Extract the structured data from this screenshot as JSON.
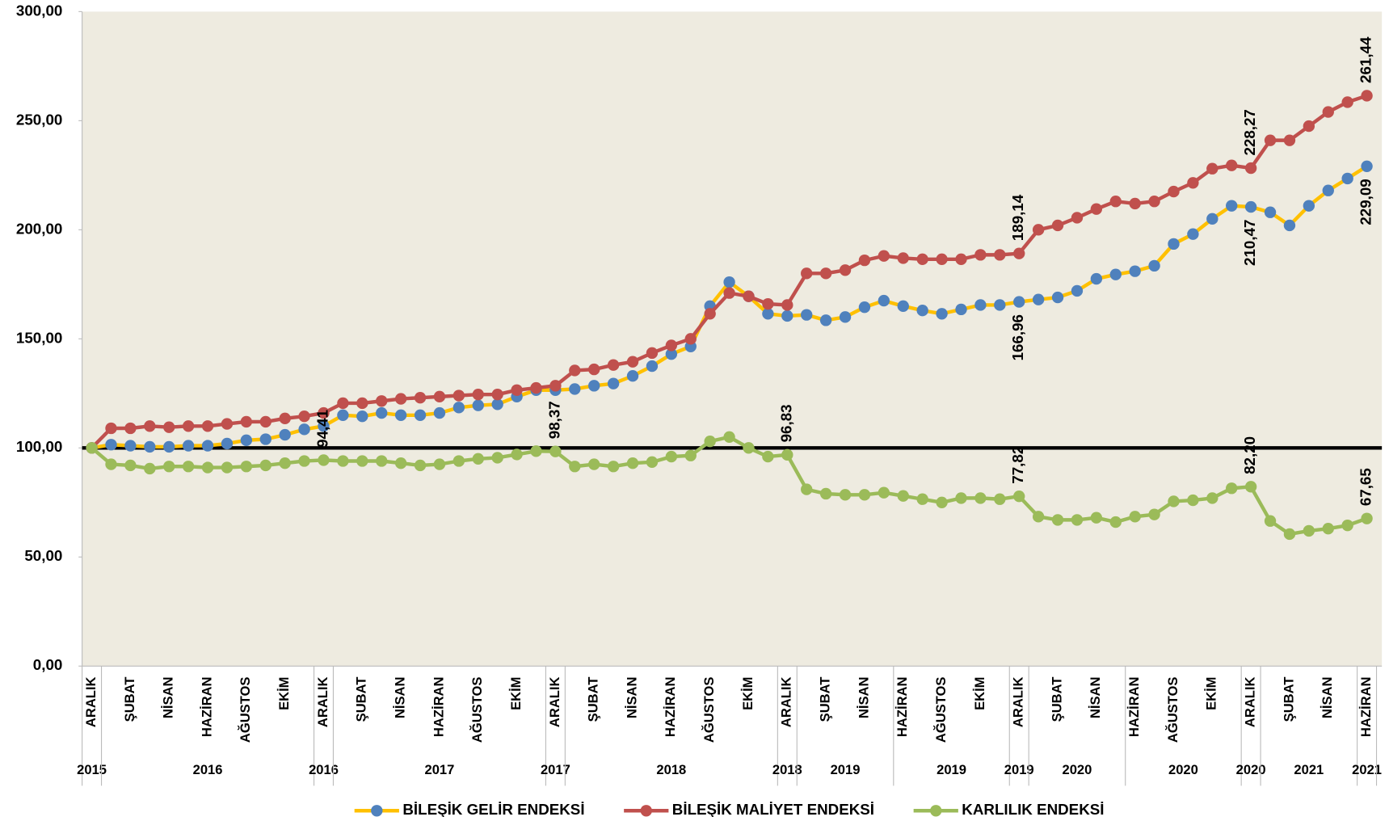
{
  "chart_data": {
    "type": "line",
    "categories": [
      "ARALIK",
      null,
      "ŞUBAT",
      null,
      "NİSAN",
      null,
      "HAZİRAN",
      null,
      "AĞUSTOS",
      null,
      "EKİM",
      null,
      "ARALIK",
      null,
      "ŞUBAT",
      null,
      "NİSAN",
      null,
      "HAZİRAN",
      null,
      "AĞUSTOS",
      null,
      "EKİM",
      null,
      "ARALIK",
      null,
      "ŞUBAT",
      null,
      "NİSAN",
      null,
      "HAZİRAN",
      null,
      "AĞUSTOS",
      null,
      "EKİM",
      null,
      "ARALIK",
      null,
      "ŞUBAT",
      null,
      "NİSAN",
      null,
      "HAZİRAN",
      null,
      "AĞUSTOS",
      null,
      "EKİM",
      null,
      "ARALIK",
      null,
      "ŞUBAT",
      null,
      "NİSAN",
      null,
      "HAZİRAN",
      null,
      "AĞUSTOS",
      null,
      "EKİM",
      null,
      "ARALIK",
      null,
      "ŞUBAT",
      null,
      "NİSAN",
      null,
      "HAZİRAN"
    ],
    "category_groups": [
      {
        "label": "2015",
        "span": 1
      },
      {
        "label": "2016",
        "span": 11
      },
      {
        "label": "2016",
        "span": 1
      },
      {
        "label": "2017",
        "span": 11
      },
      {
        "label": "2017",
        "span": 1
      },
      {
        "label": "2018",
        "span": 11
      },
      {
        "label": "2018",
        "span": 1
      },
      {
        "label": "2019",
        "span": 5
      },
      {
        "label": "2019",
        "span": 6
      },
      {
        "label": "2019",
        "span": 1
      },
      {
        "label": "2020",
        "span": 5
      },
      {
        "label": "2020",
        "span": 6
      },
      {
        "label": "2020",
        "span": 1
      },
      {
        "label": "2021",
        "span": 5
      },
      {
        "label": "2021",
        "span": 1
      }
    ],
    "series": [
      {
        "name": "BİLEŞİK GELİR ENDEKSİ",
        "color": "#ffc000",
        "marker_color": "#4f81bd",
        "label_position": "below",
        "values": [
          100,
          101.5,
          101,
          100.5,
          100.5,
          101,
          101,
          102,
          103.5,
          104,
          106,
          108.5,
          110,
          115,
          114.5,
          116,
          115,
          115,
          116,
          118.5,
          119.5,
          120,
          123.5,
          126.5,
          126.5,
          127,
          128.5,
          129.5,
          133,
          137.5,
          143,
          146.5,
          165,
          176,
          169.5,
          161.5,
          160.5,
          161,
          158.5,
          160,
          164.5,
          167.5,
          165,
          163,
          161.5,
          163.5,
          165.5,
          165.5,
          166.96,
          168,
          169,
          172,
          177.5,
          179.5,
          181,
          183.5,
          193.5,
          198,
          205,
          211,
          210.47,
          208,
          202,
          211,
          218,
          223.5,
          229.09
        ],
        "value_labels": [
          null,
          null,
          null,
          null,
          null,
          null,
          null,
          null,
          null,
          null,
          null,
          null,
          null,
          null,
          null,
          null,
          null,
          null,
          null,
          null,
          null,
          null,
          null,
          null,
          null,
          null,
          null,
          null,
          null,
          null,
          null,
          null,
          null,
          null,
          null,
          null,
          null,
          null,
          null,
          null,
          null,
          null,
          null,
          null,
          null,
          null,
          null,
          null,
          "166,96",
          null,
          null,
          null,
          null,
          null,
          null,
          null,
          null,
          null,
          null,
          null,
          "210,47",
          null,
          null,
          null,
          null,
          null,
          "229,09"
        ]
      },
      {
        "name": "BİLEŞİK MALİYET ENDEKSİ",
        "color": "#c0504d",
        "marker_color": "#c0504d",
        "label_position": "above",
        "values": [
          100,
          109,
          109,
          110,
          109.5,
          110,
          110,
          111,
          112,
          112,
          113.5,
          114.5,
          116,
          120.5,
          120.5,
          121.5,
          122.5,
          123,
          123.5,
          124,
          124.5,
          124.5,
          126.5,
          127.5,
          128.5,
          135.5,
          136,
          138,
          139.5,
          143.5,
          147,
          150,
          161.5,
          171,
          169.5,
          166,
          165.5,
          180,
          180,
          181.5,
          186,
          188,
          187,
          186.5,
          186.5,
          186.5,
          188.5,
          188.5,
          189.14,
          200,
          202,
          205.5,
          209.5,
          213,
          212,
          213,
          217.5,
          221.5,
          228,
          229.5,
          228.27,
          241,
          241,
          247.5,
          254,
          258.5,
          261.44
        ],
        "value_labels": [
          null,
          null,
          null,
          null,
          null,
          null,
          null,
          null,
          null,
          null,
          null,
          null,
          null,
          null,
          null,
          null,
          null,
          null,
          null,
          null,
          null,
          null,
          null,
          null,
          null,
          null,
          null,
          null,
          null,
          null,
          null,
          null,
          null,
          null,
          null,
          null,
          null,
          null,
          null,
          null,
          null,
          null,
          null,
          null,
          null,
          null,
          null,
          null,
          "189,14",
          null,
          null,
          null,
          null,
          null,
          null,
          null,
          null,
          null,
          null,
          null,
          "228,27",
          null,
          null,
          null,
          null,
          null,
          "261,44"
        ]
      },
      {
        "name": "KARLILIK ENDEKSİ",
        "color": "#9bbb59",
        "marker_color": "#9bbb59",
        "label_position": "above",
        "values": [
          100,
          92.5,
          92,
          90.5,
          91.5,
          91.5,
          91,
          91,
          91.5,
          92,
          93,
          94,
          94.41,
          94,
          94,
          94,
          93,
          92,
          92.5,
          94,
          95,
          95.5,
          97,
          98.5,
          98.37,
          91.5,
          92.5,
          91.5,
          93,
          93.5,
          96,
          96.5,
          103,
          105,
          100,
          96,
          96.83,
          81,
          79,
          78.5,
          78.5,
          79.5,
          78,
          76.5,
          75,
          77,
          77,
          76.5,
          77.82,
          68.5,
          67,
          67,
          68,
          66,
          68.5,
          69.5,
          75.5,
          76,
          77,
          81.5,
          82.2,
          66.5,
          60.5,
          62,
          63,
          64.5,
          67.65
        ],
        "value_labels": [
          null,
          null,
          null,
          null,
          null,
          null,
          null,
          null,
          null,
          null,
          null,
          null,
          "94,41",
          null,
          null,
          null,
          null,
          null,
          null,
          null,
          null,
          null,
          null,
          null,
          "98,37",
          null,
          null,
          null,
          null,
          null,
          null,
          null,
          null,
          null,
          null,
          null,
          "96,83",
          null,
          null,
          null,
          null,
          null,
          null,
          null,
          null,
          null,
          null,
          null,
          "77,82",
          null,
          null,
          null,
          null,
          null,
          null,
          null,
          null,
          null,
          null,
          null,
          "82,20",
          null,
          null,
          null,
          null,
          null,
          "67,65"
        ]
      }
    ],
    "ylim": [
      0,
      300
    ],
    "yticks": [
      {
        "value": 0,
        "label": "0,00"
      },
      {
        "value": 50,
        "label": "50,00"
      },
      {
        "value": 100,
        "label": "100,00"
      },
      {
        "value": 150,
        "label": "150,00"
      },
      {
        "value": 200,
        "label": "200,00"
      },
      {
        "value": 250,
        "label": "250,00"
      },
      {
        "value": 300,
        "label": "300,00"
      }
    ],
    "reference_line": 100,
    "grid": false,
    "legend": "bottom"
  }
}
